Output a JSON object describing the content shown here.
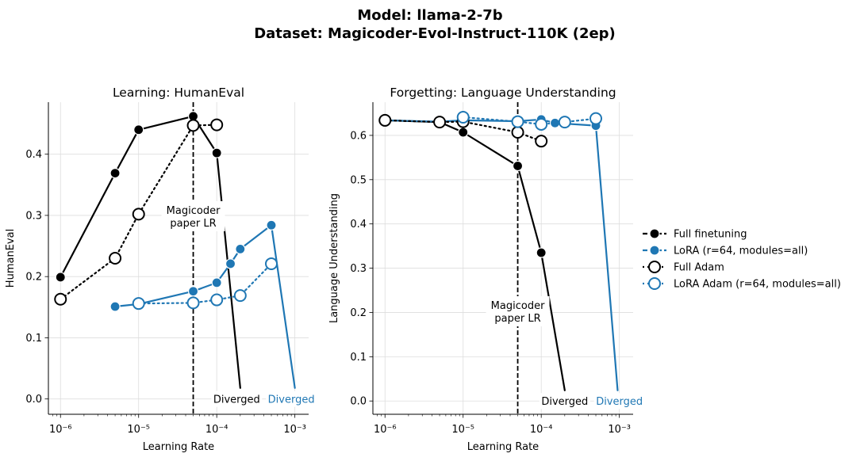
{
  "suptitle_line1": "Model: llama-2-7b",
  "suptitle_line2": "Dataset: Magicoder-Evol-Instruct-110K (2ep)",
  "colors": {
    "black": "#000000",
    "blue": "#1f77b4",
    "grid": "#dddddd"
  },
  "legend": {
    "placement": "right",
    "entries": [
      {
        "label": "Full finetuning",
        "color": "#000000",
        "line": "dashed",
        "marker": "filled"
      },
      {
        "label": "LoRA (r=64, modules=all)",
        "color": "#1f77b4",
        "line": "dashed",
        "marker": "filled"
      },
      {
        "label": "Full Adam",
        "color": "#000000",
        "line": "dotted",
        "marker": "open"
      },
      {
        "label": "LoRA Adam (r=64, modules=all)",
        "color": "#1f77b4",
        "line": "dotted",
        "marker": "open"
      }
    ]
  },
  "chart_data": [
    {
      "type": "line",
      "title": "Learning: HumanEval",
      "xlabel": "Learning Rate",
      "ylabel": "HumanEval",
      "xscale": "log",
      "xlim": [
        7e-07,
        0.0015
      ],
      "ylim": [
        -0.025,
        0.485
      ],
      "xticks": [
        1e-06,
        1e-05,
        0.0001,
        0.001
      ],
      "xtick_labels": [
        "10⁻⁶",
        "10⁻⁵",
        "10⁻⁴",
        "10⁻³"
      ],
      "yticks": [
        0.0,
        0.1,
        0.2,
        0.3,
        0.4
      ],
      "ytick_labels": [
        "0.0",
        "0.1",
        "0.2",
        "0.3",
        "0.4"
      ],
      "grid": true,
      "vline": {
        "x": 5e-05,
        "label_line1": "Magicoder",
        "label_line2": "paper LR"
      },
      "series": [
        {
          "name": "Full finetuning",
          "color": "#000000",
          "style": "solid",
          "marker": "filled",
          "points": [
            [
              1e-06,
              0.199
            ],
            [
              5e-06,
              0.369
            ],
            [
              1e-05,
              0.44
            ],
            [
              5e-05,
              0.462
            ],
            [
              0.0001,
              0.402
            ]
          ],
          "diverge_to": [
            0.0002,
            0.018
          ]
        },
        {
          "name": "LoRA (r=64, modules=all)",
          "color": "#1f77b4",
          "style": "solid",
          "marker": "filled",
          "points": [
            [
              5e-06,
              0.151
            ],
            [
              1e-05,
              0.155
            ],
            [
              5e-05,
              0.176
            ],
            [
              0.0001,
              0.19
            ],
            [
              0.00015,
              0.221
            ],
            [
              0.0002,
              0.245
            ],
            [
              0.0005,
              0.284
            ]
          ],
          "diverge_to": [
            0.001,
            0.018
          ]
        },
        {
          "name": "Full Adam",
          "color": "#000000",
          "style": "dotted",
          "marker": "open",
          "points": [
            [
              1e-06,
              0.163
            ],
            [
              5e-06,
              0.23
            ],
            [
              1e-05,
              0.302
            ],
            [
              5e-05,
              0.447
            ],
            [
              0.0001,
              0.448
            ]
          ]
        },
        {
          "name": "LoRA Adam (r=64, modules=all)",
          "color": "#1f77b4",
          "style": "dotted",
          "marker": "open",
          "points": [
            [
              1e-05,
              0.156
            ],
            [
              5e-05,
              0.157
            ],
            [
              0.0001,
              0.162
            ],
            [
              0.0002,
              0.169
            ],
            [
              0.0005,
              0.221
            ]
          ]
        }
      ],
      "annotations": [
        {
          "text": "Diverged",
          "x": 0.00018,
          "y": 0.0,
          "color": "#000000"
        },
        {
          "text": "Diverged",
          "x": 0.0009,
          "y": 0.0,
          "color": "#1f77b4"
        }
      ]
    },
    {
      "type": "line",
      "title": "Forgetting: Language Understanding",
      "xlabel": "Learning Rate",
      "ylabel": "Language Understanding",
      "xscale": "log",
      "xlim": [
        7e-07,
        0.0015
      ],
      "ylim": [
        -0.03,
        0.675
      ],
      "xticks": [
        1e-06,
        1e-05,
        0.0001,
        0.001
      ],
      "xtick_labels": [
        "10⁻⁶",
        "10⁻⁵",
        "10⁻⁴",
        "10⁻³"
      ],
      "yticks": [
        0.0,
        0.1,
        0.2,
        0.3,
        0.4,
        0.5,
        0.6
      ],
      "ytick_labels": [
        "0.0",
        "0.1",
        "0.2",
        "0.3",
        "0.4",
        "0.5",
        "0.6"
      ],
      "grid": true,
      "vline": {
        "x": 5e-05,
        "label_line1": "Magicoder",
        "label_line2": "paper LR"
      },
      "series": [
        {
          "name": "Full finetuning",
          "color": "#000000",
          "style": "solid",
          "marker": "filled",
          "points": [
            [
              1e-06,
              0.634
            ],
            [
              5e-06,
              0.63
            ],
            [
              1e-05,
              0.607
            ],
            [
              5e-05,
              0.531
            ],
            [
              0.0001,
              0.335
            ]
          ],
          "diverge_to": [
            0.0002,
            0.024
          ]
        },
        {
          "name": "LoRA (r=64, modules=all)",
          "color": "#1f77b4",
          "style": "solid",
          "marker": "filled",
          "points": [
            [
              1e-06,
              0.634
            ],
            [
              5e-06,
              0.631
            ],
            [
              1e-05,
              0.634
            ],
            [
              5e-05,
              0.632
            ],
            [
              0.0001,
              0.636
            ],
            [
              0.00015,
              0.628
            ],
            [
              0.0005,
              0.622
            ]
          ],
          "diverge_to": [
            0.00095,
            0.024
          ]
        },
        {
          "name": "Full Adam",
          "color": "#000000",
          "style": "dotted",
          "marker": "open",
          "points": [
            [
              1e-06,
              0.634
            ],
            [
              5e-06,
              0.63
            ],
            [
              1e-05,
              0.631
            ],
            [
              5e-05,
              0.607
            ],
            [
              0.0001,
              0.587
            ]
          ]
        },
        {
          "name": "LoRA Adam (r=64, modules=all)",
          "color": "#1f77b4",
          "style": "dotted",
          "marker": "open",
          "points": [
            [
              1e-05,
              0.641
            ],
            [
              5e-05,
              0.631
            ],
            [
              0.0001,
              0.625
            ],
            [
              0.0002,
              0.63
            ],
            [
              0.0005,
              0.638
            ]
          ]
        }
      ],
      "annotations": [
        {
          "text": "Diverged",
          "x": 0.0002,
          "y": 0.0,
          "color": "#000000"
        },
        {
          "text": "Diverged",
          "x": 0.001,
          "y": 0.0,
          "color": "#1f77b4"
        }
      ]
    }
  ]
}
